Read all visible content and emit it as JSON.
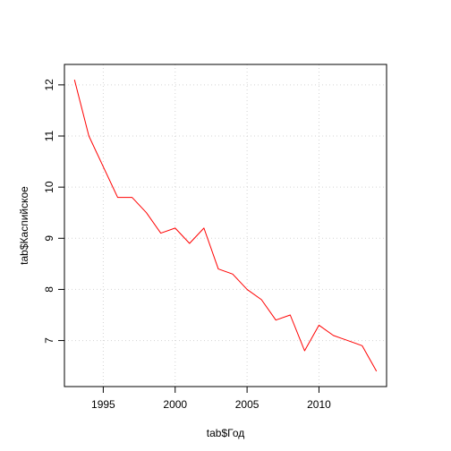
{
  "chart_data": {
    "type": "line",
    "title": "",
    "xlabel": "tab$Год",
    "ylabel": "tab$Каспийское",
    "xlim": [
      1992.3,
      2014.7
    ],
    "ylim": [
      6.1,
      12.4
    ],
    "x_ticks": [
      1995,
      2000,
      2005,
      2010
    ],
    "x_tick_labels": [
      "1995",
      "2000",
      "2005",
      "2010"
    ],
    "y_ticks": [
      7,
      8,
      9,
      10,
      11,
      12
    ],
    "y_tick_labels": [
      "7",
      "8",
      "9",
      "10",
      "11",
      "12"
    ],
    "grid": true,
    "grid_style": "dotted",
    "series": [
      {
        "color": "#ff0000",
        "points": [
          {
            "x": 1993,
            "y": 12.1
          },
          {
            "x": 1994,
            "y": 11.0
          },
          {
            "x": 1995,
            "y": 10.4
          },
          {
            "x": 1996,
            "y": 9.8
          },
          {
            "x": 1997,
            "y": 9.8
          },
          {
            "x": 1998,
            "y": 9.5
          },
          {
            "x": 1999,
            "y": 9.1
          },
          {
            "x": 2000,
            "y": 9.2
          },
          {
            "x": 2001,
            "y": 8.9
          },
          {
            "x": 2002,
            "y": 9.2
          },
          {
            "x": 2003,
            "y": 8.4
          },
          {
            "x": 2004,
            "y": 8.3
          },
          {
            "x": 2005,
            "y": 8.0
          },
          {
            "x": 2006,
            "y": 7.8
          },
          {
            "x": 2007,
            "y": 7.4
          },
          {
            "x": 2008,
            "y": 7.5
          },
          {
            "x": 2009,
            "y": 6.8
          },
          {
            "x": 2010,
            "y": 7.3
          },
          {
            "x": 2011,
            "y": 7.1
          },
          {
            "x": 2012,
            "y": 7.0
          },
          {
            "x": 2013,
            "y": 6.9
          },
          {
            "x": 2014,
            "y": 6.4
          }
        ]
      }
    ]
  },
  "colors": {
    "line": "#ff0000",
    "axis": "#000000",
    "grid": "#d3d3d3",
    "background": "#ffffff"
  }
}
